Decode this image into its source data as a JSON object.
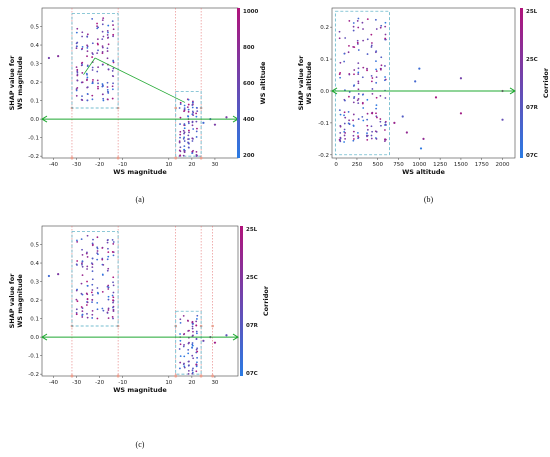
{
  "chart_data": [
    {
      "panel": "a",
      "type": "scatter",
      "caption": "(a)",
      "xlabel": "WS magnitude",
      "ylabel_lines": [
        "SHAP value for",
        "WS magnitude"
      ],
      "xlim": [
        -45,
        40
      ],
      "ylim": [
        -0.21,
        0.6
      ],
      "xticks": [
        -40,
        -30,
        -20,
        -10,
        10,
        20,
        30
      ],
      "yticks": [
        -0.2,
        -0.1,
        0.0,
        0.1,
        0.2,
        0.3,
        0.4,
        0.5
      ],
      "colorbar": {
        "label": "WS altitude",
        "ticks": [
          "1000",
          "800",
          "600",
          "400",
          "200"
        ],
        "top": "#b0127a",
        "bottom": "#2a7be4"
      },
      "boxes": [
        {
          "x0": -32,
          "x1": -12,
          "y0": 0.06,
          "y1": 0.57
        },
        {
          "x0": 13,
          "x1": 24,
          "y0": -0.2,
          "y1": 0.15
        }
      ],
      "vlines": [
        -32,
        -12,
        13,
        24
      ],
      "clusters": [
        {
          "xmin": -31,
          "xmax": -13,
          "ymin": 0.1,
          "ymax": 0.55
        },
        {
          "xmin": 14,
          "xmax": 23,
          "ymin": -0.2,
          "ymax": 0.12
        }
      ],
      "outliers": [
        {
          "x": -38,
          "y": 0.34
        },
        {
          "x": -42,
          "y": 0.33
        },
        {
          "x": 25,
          "y": -0.02
        },
        {
          "x": 28,
          "y": 0.0
        },
        {
          "x": 35,
          "y": 0.01
        },
        {
          "x": 30,
          "y": -0.03
        }
      ],
      "annotation_lines": [
        {
          "x1": -27,
          "y1": 0.24,
          "x2": -22,
          "y2": 0.33
        },
        {
          "x1": -22,
          "y1": 0.33,
          "x2": 17,
          "y2": 0.09
        }
      ]
    },
    {
      "panel": "b",
      "type": "scatter",
      "caption": "(b)",
      "xlabel": "WS altitude",
      "ylabel_lines": [
        "SHAP value for",
        "WS altitude"
      ],
      "xlim": [
        -50,
        2150
      ],
      "ylim": [
        -0.21,
        0.26
      ],
      "xticks": [
        0,
        250,
        500,
        750,
        1000,
        1250,
        1500,
        1750,
        2000
      ],
      "yticks": [
        -0.2,
        -0.1,
        0.0,
        0.1,
        0.2
      ],
      "colorbar": {
        "label": "Corridor",
        "ticks": [
          "25L",
          "25C",
          "07R",
          "07C"
        ],
        "top": "#b0127a",
        "bottom": "#2a7be4"
      },
      "boxes": [
        {
          "x0": -10,
          "x1": 640,
          "y0": -0.2,
          "y1": 0.25
        }
      ],
      "vlines": [],
      "clusters": [
        {
          "xmin": 20,
          "xmax": 620,
          "ymin": -0.16,
          "ymax": 0.24
        }
      ],
      "outliers": [
        {
          "x": 700,
          "y": -0.1
        },
        {
          "x": 800,
          "y": -0.08
        },
        {
          "x": 850,
          "y": -0.13
        },
        {
          "x": 1000,
          "y": 0.07
        },
        {
          "x": 1020,
          "y": -0.18
        },
        {
          "x": 1050,
          "y": -0.15
        },
        {
          "x": 1200,
          "y": -0.02
        },
        {
          "x": 1500,
          "y": 0.04
        },
        {
          "x": 1500,
          "y": -0.07
        },
        {
          "x": 2000,
          "y": 0.0
        },
        {
          "x": 2000,
          "y": -0.09
        },
        {
          "x": 950,
          "y": 0.03
        }
      ],
      "annotation_lines": []
    },
    {
      "panel": "c",
      "type": "scatter",
      "caption": "(c)",
      "xlabel": "WS magnitude",
      "ylabel_lines": [
        "SHAP value for",
        "WS magnitude"
      ],
      "xlim": [
        -45,
        40
      ],
      "ylim": [
        -0.21,
        0.6
      ],
      "xticks": [
        -40,
        -30,
        -20,
        -10,
        10,
        20,
        30
      ],
      "yticks": [
        -0.2,
        -0.1,
        0.0,
        0.1,
        0.2,
        0.3,
        0.4,
        0.5
      ],
      "colorbar": {
        "label": "Corridor",
        "ticks": [
          "25L",
          "25C",
          "07R",
          "07C"
        ],
        "top": "#b0127a",
        "bottom": "#2a7be4"
      },
      "boxes": [
        {
          "x0": -32,
          "x1": -12,
          "y0": 0.06,
          "y1": 0.57
        },
        {
          "x0": 13,
          "x1": 24,
          "y0": -0.2,
          "y1": 0.14
        }
      ],
      "vlines": [
        -32,
        -12,
        13,
        24,
        29
      ],
      "clusters": [
        {
          "xmin": -31,
          "xmax": -13,
          "ymin": 0.1,
          "ymax": 0.55
        },
        {
          "xmin": 14,
          "xmax": 23,
          "ymin": -0.2,
          "ymax": 0.12
        }
      ],
      "outliers": [
        {
          "x": -38,
          "y": 0.34
        },
        {
          "x": -42,
          "y": 0.33
        },
        {
          "x": 25,
          "y": -0.02
        },
        {
          "x": 28,
          "y": 0.0
        },
        {
          "x": 35,
          "y": 0.01
        },
        {
          "x": 30,
          "y": -0.03
        }
      ],
      "annotation_lines": []
    }
  ]
}
